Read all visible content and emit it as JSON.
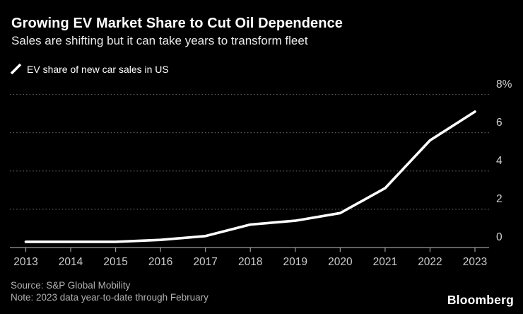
{
  "header": {
    "title": "Growing EV Market Share to Cut Oil Dependence",
    "subtitle": "Sales are shifting but it can take years to transform fleet"
  },
  "legend": {
    "label": "EV share of new car sales in US"
  },
  "chart_data": {
    "type": "line",
    "title": "EV share of new car sales in US",
    "categories": [
      "2013",
      "2014",
      "2015",
      "2016",
      "2017",
      "2018",
      "2019",
      "2020",
      "2021",
      "2022",
      "2023"
    ],
    "values": [
      0.3,
      0.3,
      0.3,
      0.4,
      0.6,
      1.2,
      1.4,
      1.8,
      3.1,
      5.6,
      7.1
    ],
    "unit": "%",
    "xlabel": "",
    "ylabel": "",
    "ylim": [
      0,
      8
    ],
    "y_ticks": [
      {
        "value": 8,
        "label": "8%"
      },
      {
        "value": 6,
        "label": "6"
      },
      {
        "value": 4,
        "label": "4"
      },
      {
        "value": 2,
        "label": "2"
      },
      {
        "value": 0,
        "label": "0"
      }
    ],
    "grid": "horizontal-dotted",
    "legend_position": "top-left",
    "line_color": "#ffffff"
  },
  "footer": {
    "source": "Source: S&P Global Mobility",
    "note": "Note: 2023 data year-to-date through February",
    "brand": "Bloomberg"
  },
  "colors": {
    "background": "#000000",
    "line": "#ffffff",
    "grid": "#5a5a5a",
    "axis": "#9b9b9b",
    "text_primary": "#ffffff",
    "text_secondary": "#cccccc",
    "text_muted": "#b1b1b1"
  }
}
